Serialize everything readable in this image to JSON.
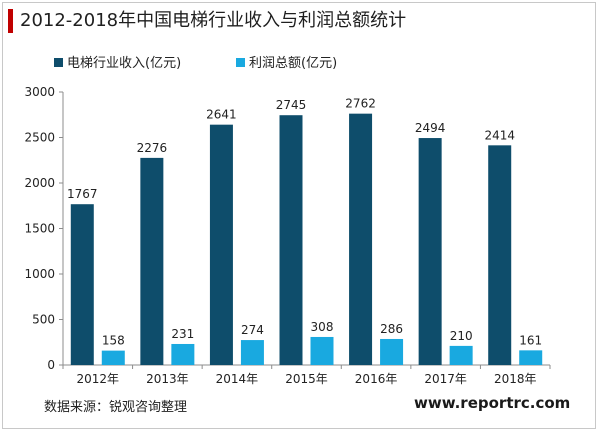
{
  "page": {
    "title": "2012-2018年中国电梯行业收入与利润总额统计",
    "source": "数据来源：锐观咨询整理",
    "url": "www.reportrc.com",
    "accent_color": "#c00000"
  },
  "chart_data": {
    "type": "bar",
    "title": "2012-2018年中国电梯行业收入与利润总额统计",
    "xlabel": "",
    "ylabel": "",
    "categories": [
      "2012年",
      "2013年",
      "2014年",
      "2015年",
      "2016年",
      "2017年",
      "2018年"
    ],
    "series": [
      {
        "name": "电梯行业收入(亿元)",
        "color": "#0e4d6b",
        "values": [
          1767,
          2276,
          2641,
          2745,
          2762,
          2494,
          2414
        ]
      },
      {
        "name": "利润总额(亿元)",
        "color": "#19a9e0",
        "values": [
          158,
          231,
          274,
          308,
          286,
          210,
          161
        ]
      }
    ],
    "ylim": [
      0,
      3000
    ],
    "yticks": [
      0,
      500,
      1000,
      1500,
      2000,
      2500,
      3000
    ],
    "grid": false,
    "legend_position": "top-left"
  }
}
